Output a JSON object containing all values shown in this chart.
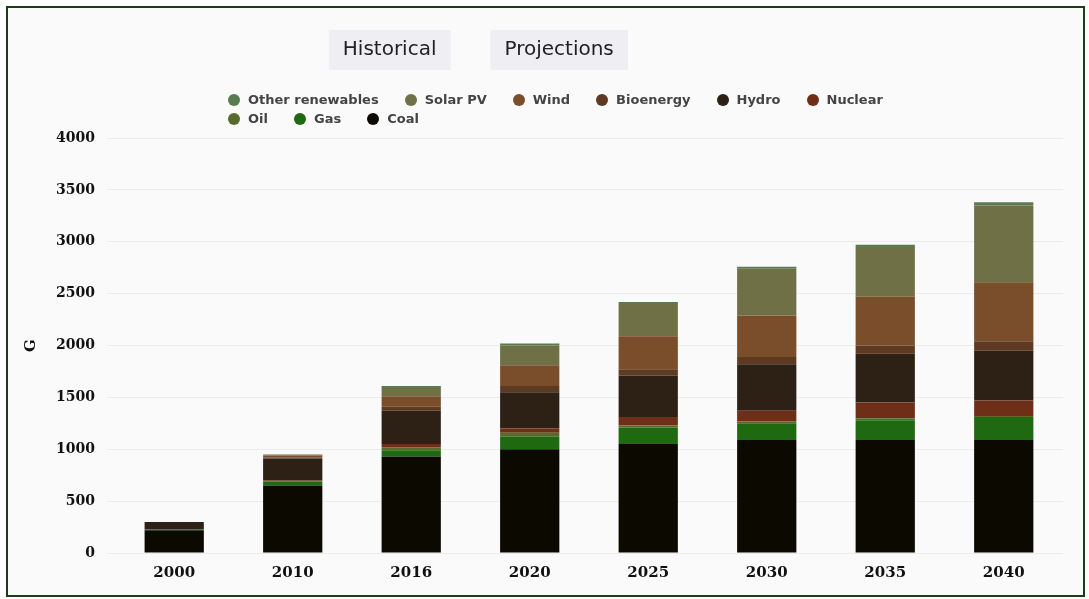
{
  "chart_data": {
    "type": "bar",
    "stacked": true,
    "ylabel": "G",
    "categories": [
      "2000",
      "2010",
      "2016",
      "2020",
      "2025",
      "2030",
      "2035",
      "2040"
    ],
    "series": [
      {
        "name": "Coal",
        "color": "#0c0a00",
        "values": [
          220,
          650,
          930,
          1000,
          1050,
          1090,
          1090,
          1090
        ]
      },
      {
        "name": "Gas",
        "color": "#1f6a10",
        "values": [
          10,
          40,
          60,
          120,
          160,
          160,
          190,
          220
        ]
      },
      {
        "name": "Oil",
        "color": "#5a6a2a",
        "values": [
          0,
          0,
          30,
          40,
          20,
          20,
          20,
          10
        ]
      },
      {
        "name": "Nuclear",
        "color": "#6e2e18",
        "values": [
          0,
          10,
          30,
          40,
          80,
          100,
          150,
          150
        ]
      },
      {
        "name": "Hydro",
        "color": "#2d2115",
        "values": [
          70,
          210,
          320,
          350,
          400,
          450,
          470,
          480
        ]
      },
      {
        "name": "Bioenergy",
        "color": "#5e3a22",
        "values": [
          0,
          10,
          40,
          60,
          60,
          70,
          80,
          90
        ]
      },
      {
        "name": "Wind",
        "color": "#7a4e2a",
        "values": [
          0,
          20,
          100,
          200,
          320,
          400,
          470,
          570
        ]
      },
      {
        "name": "Solar PV",
        "color": "#6f7045",
        "values": [
          0,
          10,
          80,
          190,
          310,
          450,
          480,
          740
        ]
      },
      {
        "name": "Other renewables",
        "color": "#5a7a50",
        "values": [
          0,
          0,
          20,
          20,
          20,
          20,
          20,
          30
        ]
      }
    ],
    "ylim": [
      0,
      4000
    ],
    "yticks": [
      0,
      500,
      1000,
      1500,
      2000,
      2500,
      3000,
      3500,
      4000
    ],
    "grid": "y",
    "legend": "top",
    "annotations": [
      "Historical",
      "Projections"
    ]
  }
}
